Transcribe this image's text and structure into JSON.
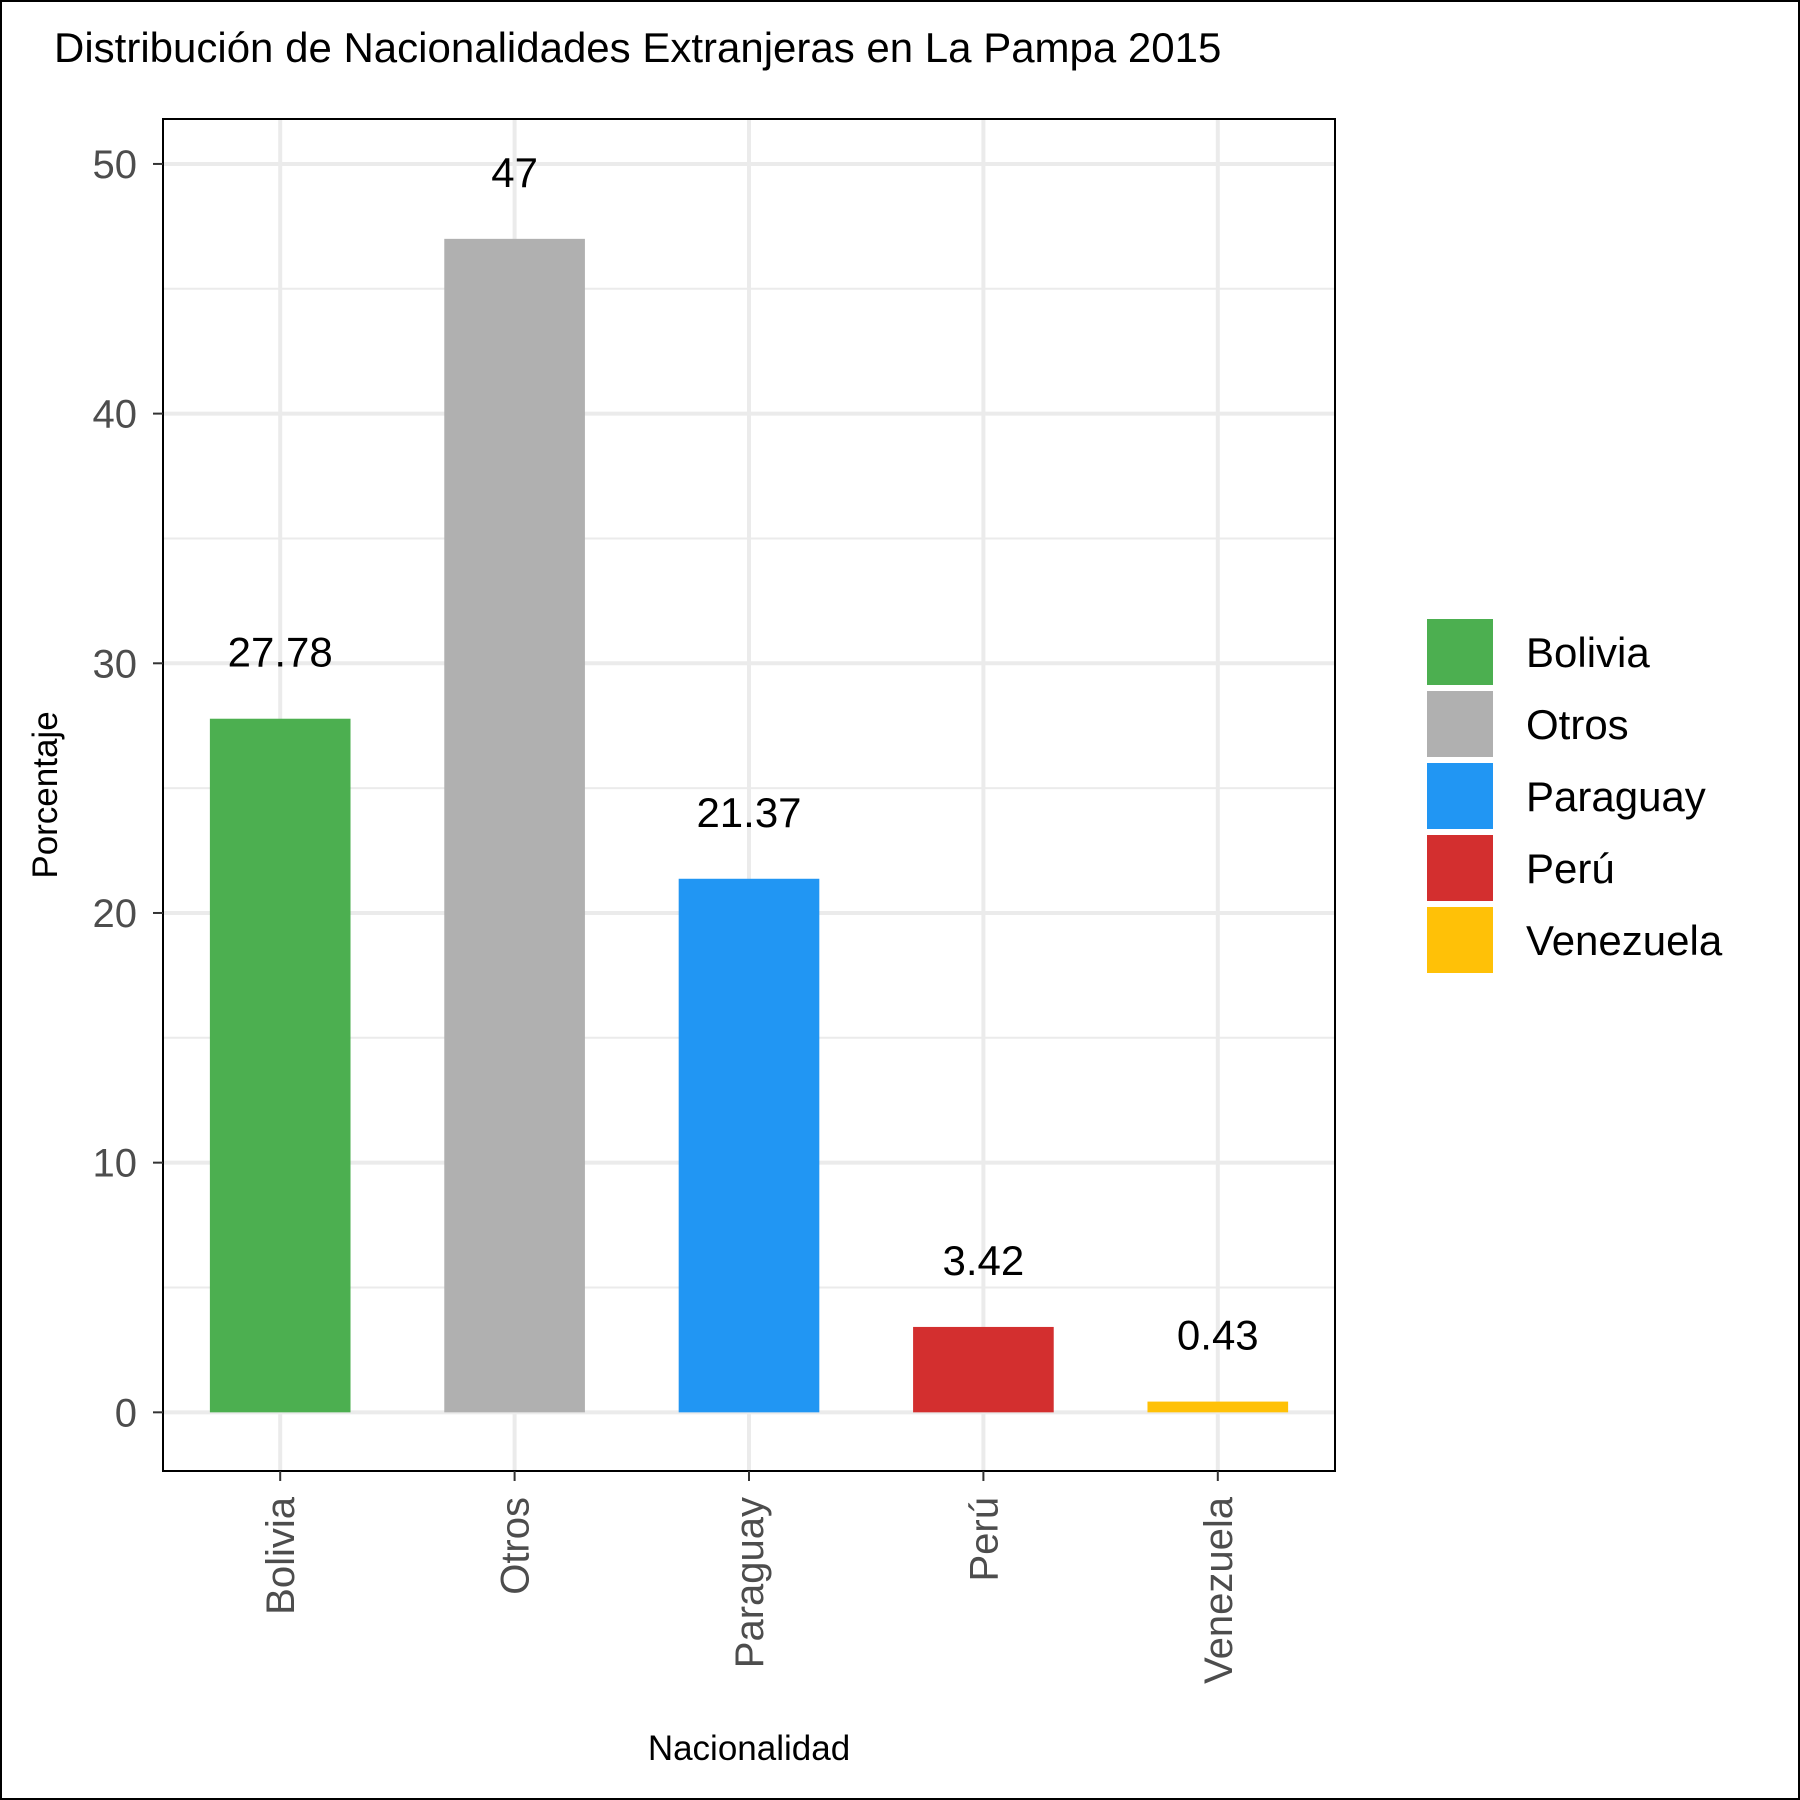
{
  "chart_data": {
    "type": "bar",
    "title": "Distribución de Nacionalidades Extranjeras en La Pampa 2015",
    "xlabel": "Nacionalidad",
    "ylabel": "Porcentaje",
    "categories": [
      "Bolivia",
      "Otros",
      "Paraguay",
      "Perú",
      "Venezuela"
    ],
    "values": [
      27.78,
      47,
      21.37,
      3.42,
      0.43
    ],
    "data_labels": [
      "27.78",
      "47",
      "21.37",
      "3.42",
      "0.43"
    ],
    "colors": [
      "#4caf50",
      "#b0b0b0",
      "#2196f3",
      "#d32f2f",
      "#ffc107"
    ],
    "ylim": [
      -2.35,
      51.8
    ],
    "yticks": [
      0,
      10,
      20,
      30,
      40,
      50
    ],
    "grid": true,
    "legend": {
      "position": "right",
      "entries": [
        "Bolivia",
        "Otros",
        "Paraguay",
        "Perú",
        "Venezuela"
      ]
    }
  }
}
